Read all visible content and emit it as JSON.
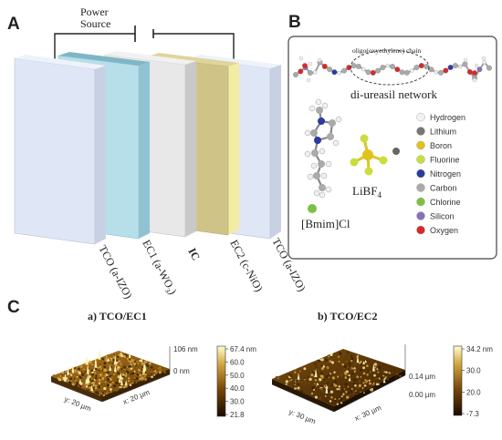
{
  "panel_a": {
    "letter": "A",
    "power_label_1": "Power",
    "power_label_2": "Source",
    "layers": [
      {
        "label": "TCO (a-IZO)",
        "face": "#dfe6f5",
        "side": "#c8d1e4"
      },
      {
        "label": "EC1 (a-WO₃)",
        "face": "#b3dde8",
        "side": "#8fc3d2"
      },
      {
        "label": "IC",
        "face": "#e6e6e6",
        "side": "#c9c9c9"
      },
      {
        "label": "EC2 (c-NiO)",
        "face": "#d3c88a",
        "side": "#b7ab6a"
      },
      {
        "label": "TCO (a-IZO)",
        "face": "#dfe6f5",
        "side": "#c8d1e4"
      }
    ],
    "ec1_label_parts": [
      "EC1 (a-WO",
      "3",
      ")"
    ]
  },
  "panel_b": {
    "letter": "B",
    "chain_label": "oligo(oxyethylene) chain",
    "network_label": "di-ureasil network",
    "salt_label_main": "LiBF",
    "salt_label_sub": "4",
    "ionic_liquid_label": "[Bmim]Cl",
    "legend": [
      {
        "name": "Hydrogen",
        "color": "#f2f2f2"
      },
      {
        "name": "Lithium",
        "color": "#777777"
      },
      {
        "name": "Boron",
        "color": "#e0c21a"
      },
      {
        "name": "Fluorine",
        "color": "#c9dd3c"
      },
      {
        "name": "Nitrogen",
        "color": "#2a3c9e"
      },
      {
        "name": "Carbon",
        "color": "#aaaaaa"
      },
      {
        "name": "Chlorine",
        "color": "#7cc142"
      },
      {
        "name": "Silicon",
        "color": "#8a6fb5"
      },
      {
        "name": "Oxygen",
        "color": "#d8282a"
      }
    ]
  },
  "panel_c": {
    "letter": "C",
    "afm": [
      {
        "title": "a) TCO/EC1",
        "z_max_label": "106 nm",
        "z_min_label": "0 nm",
        "y_axis_label": "y: 20 µm",
        "x_axis_label": "x: 20 µm",
        "colorbar_ticks": [
          "67.4 nm",
          "60.0",
          "50.0",
          "40.0",
          "30.0",
          "21.8"
        ],
        "colors": {
          "low": "#2a1400",
          "mid": "#8a5a10",
          "high": "#ffffc0"
        }
      },
      {
        "title": "b) TCO/EC2",
        "z_max_label": "0.14 µm",
        "z_min_label": "0.00 µm",
        "y_axis_label": "y: 30 µm",
        "x_axis_label": "x: 30 µm",
        "colorbar_ticks": [
          "34.2 nm",
          "30.0",
          "20.0",
          "-7.3"
        ],
        "colors": {
          "low": "#2a1400",
          "mid": "#8a5a10",
          "high": "#ffffc0"
        }
      }
    ]
  }
}
